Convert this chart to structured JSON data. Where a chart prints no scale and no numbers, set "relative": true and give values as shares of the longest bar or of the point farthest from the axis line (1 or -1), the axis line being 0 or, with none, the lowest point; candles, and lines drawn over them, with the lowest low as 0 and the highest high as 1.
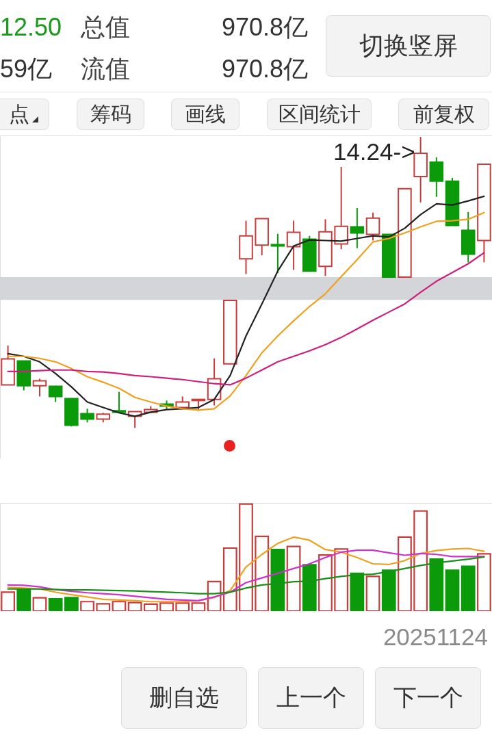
{
  "chart_data": [
    {
      "type": "other",
      "annotations": [
        "12.50",
        "总值",
        "970.8亿",
        "切换竖屏",
        "59亿",
        "流值",
        "970.8亿",
        "点",
        "筹码",
        "画线",
        "区间统计",
        "前复权"
      ]
    },
    {
      "type": "candlestick",
      "relative": true,
      "categories": [
        null,
        null,
        null,
        null,
        null,
        null,
        null,
        null,
        null,
        null,
        null,
        null,
        null,
        null,
        null,
        null,
        null,
        null,
        null,
        null,
        null,
        null,
        null,
        null,
        null,
        null,
        null,
        null,
        null,
        null,
        null
      ],
      "ohlc": [
        [
          0.148,
          0.283,
          0.148,
          0.237
        ],
        [
          0.23,
          0.23,
          0.129,
          0.145
        ],
        [
          0.145,
          0.169,
          0.108,
          0.162
        ],
        [
          0.143,
          0.145,
          0.089,
          0.108
        ],
        [
          0.101,
          0.101,
          0.005,
          0.009
        ],
        [
          0.049,
          0.066,
          0.019,
          0.03
        ],
        [
          0.03,
          0.052,
          0.019,
          0.047
        ],
        [
          0.059,
          0.124,
          0.054,
          0.054
        ],
        [
          0.04,
          0.056,
          0,
          0.056
        ],
        [
          0.054,
          0.075,
          0.054,
          0.063
        ],
        [
          0.082,
          0.094,
          0.063,
          0.075
        ],
        [
          0.07,
          0.108,
          0.07,
          0.089
        ],
        [
          0.094,
          0.098,
          0.059,
          0.098
        ],
        [
          0.098,
          0.239,
          0.077,
          0.169
        ],
        [
          0.22,
          0.438,
          0.22,
          0.438
        ],
        [
          0.581,
          0.712,
          0.529,
          0.66
        ],
        [
          0.628,
          0.719,
          0.593,
          0.719
        ],
        [
          0.63,
          0.667,
          0.532,
          0.625
        ],
        [
          0.623,
          0.712,
          0.543,
          0.672
        ],
        [
          0.649,
          0.66,
          0.539,
          0.539
        ],
        [
          0.555,
          0.717,
          0.522,
          0.674
        ],
        [
          0.632,
          0.897,
          0.614,
          0.693
        ],
        [
          0.691,
          0.756,
          0.618,
          0.67
        ],
        [
          0.665,
          0.74,
          0.644,
          0.721
        ],
        [
          0.665,
          0.665,
          0.518,
          0.518
        ],
        [
          0.518,
          0.822,
          0.518,
          0.822
        ],
        [
          0.864,
          1,
          0.775,
          0.944
        ],
        [
          0.913,
          0.93,
          0.794,
          0.848
        ],
        [
          0.848,
          0.859,
          0.696,
          0.696
        ],
        [
          0.679,
          0.742,
          0.569,
          0.597
        ],
        [
          0.644,
          0.906,
          0.569,
          0.906
        ]
      ],
      "colors": [
        "#c83c3c",
        "#0a9a0a",
        "#c83c3c",
        "#0a9a0a",
        "#0a9a0a",
        "#0a9a0a",
        "#c83c3c",
        "#0a9a0a",
        "#c83c3c",
        "#c83c3c",
        "#0a9a0a",
        "#c83c3c",
        "#c83c3c",
        "#c83c3c",
        "#c83c3c",
        "#c83c3c",
        "#c83c3c",
        "#0a9a0a",
        "#c83c3c",
        "#0a9a0a",
        "#c83c3c",
        "#c83c3c",
        "#0a9a0a",
        "#c83c3c",
        "#0a9a0a",
        "#c83c3c",
        "#c83c3c",
        "#0a9a0a",
        "#0a9a0a",
        "#0a9a0a",
        "#c83c3c"
      ],
      "series": [
        {
          "type": "line",
          "color": "#222222",
          "values": [
            0.255,
            0.246,
            0.227,
            0.187,
            0.141,
            0.089,
            0.07,
            0.052,
            0.04,
            0.054,
            0.063,
            0.066,
            0.07,
            0.098,
            0.18,
            0.316,
            0.426,
            0.539,
            0.625,
            0.646,
            0.644,
            0.642,
            0.651,
            0.66,
            0.656,
            0.686,
            0.733,
            0.77,
            0.766,
            0.78,
            0.796
          ]
        },
        {
          "type": "line",
          "color": "#f0a020",
          "values": [
            0.246,
            0.246,
            0.239,
            0.227,
            0.204,
            0.176,
            0.157,
            0.136,
            0.105,
            0.089,
            0.075,
            0.066,
            0.061,
            0.066,
            0.11,
            0.18,
            0.258,
            0.316,
            0.368,
            0.417,
            0.461,
            0.52,
            0.578,
            0.639,
            0.651,
            0.67,
            0.691,
            0.71,
            0.712,
            0.717,
            0.74
          ]
        },
        {
          "type": "line",
          "color": "#cc1f7f",
          "values": [
            0.194,
            0.194,
            0.197,
            0.199,
            0.199,
            0.194,
            0.192,
            0.187,
            0.18,
            0.176,
            0.171,
            0.166,
            0.159,
            0.152,
            0.148,
            0.171,
            0.199,
            0.227,
            0.246,
            0.265,
            0.286,
            0.311,
            0.34,
            0.37,
            0.398,
            0.426,
            0.466,
            0.504,
            0.534,
            0.564,
            0.602
          ]
        }
      ],
      "bands": [
        {
          "axis": "y",
          "from": 0.44,
          "to": 0.518,
          "color": "#d3d5d9"
        }
      ],
      "annotations": [
        "14.24->"
      ]
    },
    {
      "type": "bar",
      "relative": true,
      "categories": [
        null,
        null,
        null,
        null,
        null,
        null,
        null,
        null,
        null,
        null,
        null,
        null,
        null,
        null,
        null,
        null,
        null,
        null,
        null,
        null,
        null,
        null,
        null,
        null,
        null,
        null,
        null,
        null,
        null,
        null,
        null
      ],
      "series": [
        {
          "type": "bar",
          "values": [
            0.176,
            0.2,
            0.124,
            0.115,
            0.126,
            0.088,
            0.068,
            0.088,
            0.079,
            0.065,
            0.074,
            0.074,
            0.074,
            0.276,
            0.588,
            1,
            0.697,
            0.574,
            0.603,
            0.432,
            0.524,
            0.579,
            0.353,
            0.324,
            0.382,
            0.691,
            0.935,
            0.485,
            0.382,
            0.418,
            0.535
          ],
          "colors": [
            "#c83c3c",
            "#0a9a0a",
            "#c83c3c",
            "#0a9a0a",
            "#0a9a0a",
            "#c83c3c",
            "#c83c3c",
            "#c83c3c",
            "#c83c3c",
            "#c83c3c",
            "#c83c3c",
            "#c83c3c",
            "#c83c3c",
            "#c83c3c",
            "#c83c3c",
            "#c83c3c",
            "#c83c3c",
            "#0a9a0a",
            "#c83c3c",
            "#0a9a0a",
            "#c83c3c",
            "#c83c3c",
            "#0a9a0a",
            "#c83c3c",
            "#0a9a0a",
            "#c83c3c",
            "#c83c3c",
            "#0a9a0a",
            "#0a9a0a",
            "#0a9a0a",
            "#c83c3c"
          ]
        },
        {
          "type": "line",
          "color": "#f0a020",
          "values": [
            0.221,
            0.215,
            0.206,
            0.176,
            0.153,
            0.132,
            0.109,
            0.103,
            0.097,
            0.088,
            0.088,
            0.088,
            0.097,
            0.126,
            0.191,
            0.412,
            0.529,
            0.632,
            0.691,
            0.662,
            0.574,
            0.55,
            0.5,
            0.441,
            0.435,
            0.471,
            0.538,
            0.565,
            0.579,
            0.585,
            0.559
          ]
        },
        {
          "type": "line",
          "color": "#cc33cc",
          "values": [
            0.244,
            0.241,
            0.226,
            0.2,
            0.185,
            0.171,
            0.162,
            0.153,
            0.138,
            0.124,
            0.109,
            0.103,
            0.097,
            0.132,
            0.176,
            0.265,
            0.309,
            0.353,
            0.397,
            0.441,
            0.5,
            0.55,
            0.568,
            0.568,
            0.544,
            0.521,
            0.538,
            0.529,
            0.509,
            0.509,
            0.509
          ]
        },
        {
          "type": "line",
          "color": "#1a8f1a",
          "values": [
            0.206,
            0.206,
            0.206,
            0.2,
            0.197,
            0.197,
            0.194,
            0.191,
            0.188,
            0.182,
            0.176,
            0.171,
            0.162,
            0.162,
            0.176,
            0.215,
            0.244,
            0.256,
            0.274,
            0.279,
            0.303,
            0.324,
            0.338,
            0.344,
            0.368,
            0.397,
            0.426,
            0.45,
            0.468,
            0.485,
            0.506
          ]
        }
      ],
      "annotations": [
        "20251124"
      ]
    },
    {
      "type": "other",
      "annotations": [
        "删自选",
        "上一个",
        "下一个"
      ]
    }
  ]
}
